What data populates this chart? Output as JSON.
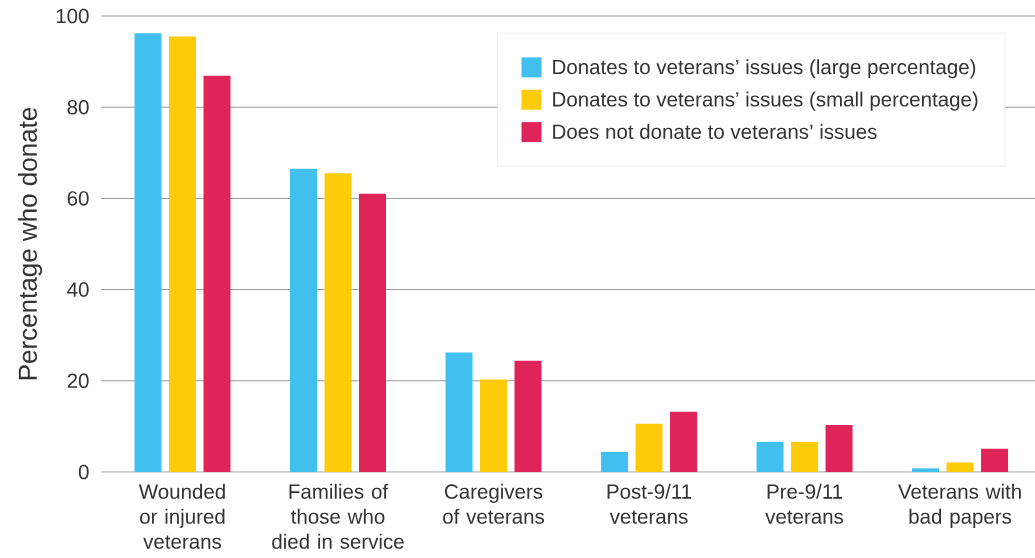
{
  "chart_data": {
    "type": "bar",
    "ylabel": "Percentage who donate",
    "categories": [
      "Wounded or injured veterans",
      "Families of those who died in service",
      "Caregivers of veterans",
      "Post-9/11 veterans",
      "Pre-9/11 veterans",
      "Veterans with bad papers"
    ],
    "series": [
      {
        "name": "Donates to veterans’ issues (large percentage)",
        "color": "#41bfee",
        "values": [
          96.2,
          66.5,
          26.2,
          4.4,
          6.6,
          0.8
        ]
      },
      {
        "name": "Donates to veterans’ issues (small percentage)",
        "color": "#fdcb0a",
        "values": [
          95.5,
          65.5,
          20.3,
          10.6,
          6.6,
          2.1
        ]
      },
      {
        "name": "Does not donate to veterans’ issues",
        "color": "#df2459",
        "values": [
          86.9,
          61.0,
          24.4,
          13.2,
          10.3,
          5.1
        ]
      }
    ],
    "ylim": [
      0,
      100
    ],
    "yticks": [
      0,
      20,
      40,
      60,
      80,
      100
    ],
    "grid": "y",
    "legend": "top right"
  }
}
